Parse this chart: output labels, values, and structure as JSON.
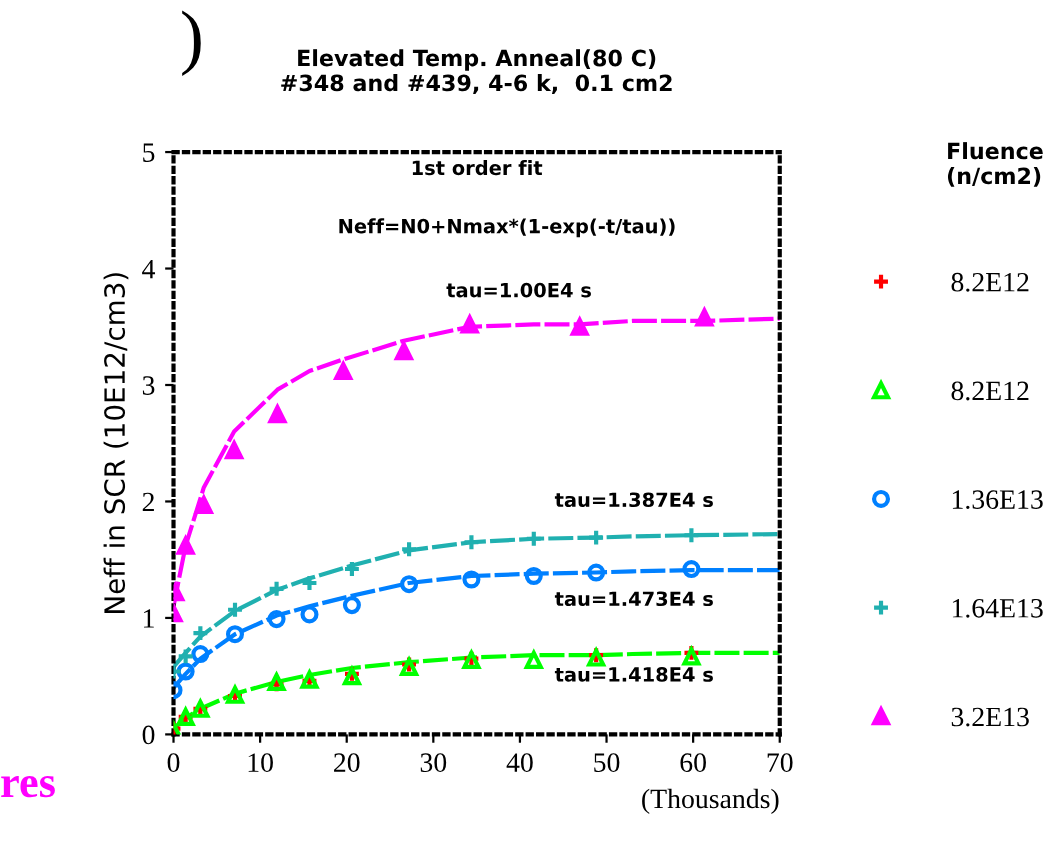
{
  "chart_data": {
    "type": "scatter",
    "title": "Elevated Temp. Anneal(80 C)\n#348 and #439, 4-6 k,  0.1 cm2",
    "xlabel": "(Thousands)",
    "ylabel": "Neff in SCR (10E12/cm3)",
    "legend_title": "Fluence\n(n/cm2)",
    "legend": "right",
    "grid": false,
    "xlim": [
      0,
      70
    ],
    "ylim": [
      0,
      5
    ],
    "xticks": [
      0,
      10,
      20,
      30,
      40,
      50,
      60,
      70
    ],
    "yticks": [
      0,
      1,
      2,
      3,
      4,
      5
    ],
    "series": [
      {
        "name": "8.2E12",
        "color": "#ff0000",
        "marker": "cross",
        "x": [
          0,
          1.4,
          3.1,
          7.1,
          11.9,
          15.7,
          20.6,
          27.2,
          34.4,
          48.8,
          59.8
        ],
        "values": [
          0.05,
          0.15,
          0.22,
          0.33,
          0.43,
          0.46,
          0.52,
          0.6,
          0.65,
          0.68,
          0.7
        ]
      },
      {
        "name": "8.2E12",
        "color": "#00ff00",
        "marker": "triangle_open",
        "x": [
          0,
          1.4,
          3.1,
          7.1,
          11.9,
          15.7,
          20.6,
          27.2,
          34.4,
          41.6,
          48.8,
          59.8
        ],
        "values": [
          0.03,
          0.15,
          0.22,
          0.34,
          0.45,
          0.47,
          0.5,
          0.58,
          0.64,
          0.64,
          0.66,
          0.67
        ]
      },
      {
        "name": "1.36E13",
        "color": "#0080ff",
        "marker": "circle",
        "x": [
          0,
          1.4,
          3.1,
          7.1,
          11.9,
          15.7,
          20.6,
          27.2,
          34.4,
          41.6,
          48.8,
          59.8
        ],
        "values": [
          0.38,
          0.54,
          0.69,
          0.86,
          0.99,
          1.03,
          1.11,
          1.29,
          1.33,
          1.36,
          1.39,
          1.42
        ]
      },
      {
        "name": "1.64E13",
        "color": "#20b0b0",
        "marker": "cross",
        "x": [
          0,
          1.4,
          3.1,
          7.1,
          11.9,
          15.7,
          20.6,
          27.2,
          34.4,
          41.6,
          48.8,
          59.8
        ],
        "values": [
          0.54,
          0.67,
          0.87,
          1.07,
          1.25,
          1.3,
          1.42,
          1.59,
          1.65,
          1.68,
          1.69,
          1.71
        ]
      },
      {
        "name": "3.2E13",
        "color": "#ff00ff",
        "marker": "triangle",
        "x": [
          0,
          0.2,
          1.4,
          3.5,
          7.0,
          12.0,
          19.6,
          26.6,
          34.2,
          46.9,
          61.3
        ],
        "values": [
          1.04,
          1.22,
          1.62,
          1.97,
          2.44,
          2.75,
          3.12,
          3.29,
          3.52,
          3.5,
          3.58
        ]
      },
      {
        "type": "line",
        "line_style": "dashed",
        "color": "#00ff00",
        "x": [
          0,
          1.4,
          3.1,
          7.1,
          11.9,
          15.7,
          20.6,
          27.2,
          34.4,
          41.6,
          48.8,
          53,
          59.8,
          70
        ],
        "values": [
          0.05,
          0.14,
          0.22,
          0.35,
          0.45,
          0.51,
          0.57,
          0.62,
          0.66,
          0.68,
          0.68,
          0.69,
          0.7,
          0.7
        ]
      },
      {
        "type": "line",
        "line_style": "dashed",
        "color": "#0080ff",
        "x": [
          0,
          1.4,
          3.1,
          7.1,
          11.9,
          15.7,
          20.6,
          27.2,
          34.4,
          41.6,
          48.8,
          53,
          59.8,
          70
        ],
        "values": [
          0.4,
          0.52,
          0.65,
          0.86,
          1.02,
          1.1,
          1.19,
          1.3,
          1.36,
          1.38,
          1.39,
          1.4,
          1.41,
          1.41
        ]
      },
      {
        "type": "line",
        "line_style": "dashed",
        "color": "#20b0b0",
        "x": [
          0,
          1.4,
          3.1,
          7.1,
          11.9,
          15.7,
          20.6,
          27.2,
          34.4,
          41.6,
          48.8,
          53,
          59.8,
          70
        ],
        "values": [
          0.58,
          0.7,
          0.84,
          1.06,
          1.24,
          1.34,
          1.45,
          1.58,
          1.65,
          1.68,
          1.69,
          1.7,
          1.71,
          1.72
        ]
      },
      {
        "type": "line",
        "line_style": "dashed",
        "color": "#ff00ff",
        "x": [
          0,
          1.4,
          3.5,
          7.0,
          12.0,
          15.7,
          19.6,
          26.6,
          34.2,
          41.6,
          46.9,
          53,
          61.3,
          70
        ],
        "values": [
          1.1,
          1.62,
          2.12,
          2.6,
          2.96,
          3.12,
          3.22,
          3.38,
          3.5,
          3.52,
          3.52,
          3.55,
          3.55,
          3.57
        ]
      }
    ],
    "annotations": [
      "1st order fit",
      "Neff=N0+Nmax*(1-exp(-t/tau))",
      "tau=1.00E4 s",
      "tau=1.387E4 s",
      "tau=1.473E4 s",
      "tau=1.418E4 s",
      ")",
      "res"
    ]
  }
}
